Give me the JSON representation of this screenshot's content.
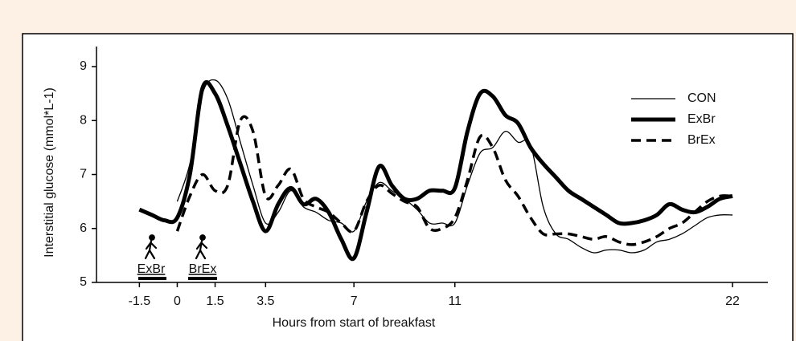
{
  "chart_data": {
    "type": "line",
    "xlabel": "Hours from start of breakfast",
    "ylabel": "Interstitial glucose (mmol*L-1)",
    "x": [
      -1.5,
      -1,
      -0.5,
      0,
      0.5,
      1,
      1.5,
      2,
      2.5,
      3,
      3.5,
      4,
      4.5,
      5,
      5.5,
      6,
      6.5,
      7,
      7.5,
      8,
      8.5,
      9,
      9.5,
      10,
      10.5,
      11,
      11.5,
      12,
      12.5,
      13,
      13.5,
      14,
      14.5,
      15,
      15.5,
      16,
      16.5,
      17,
      17.5,
      18,
      18.5,
      19,
      19.5,
      20,
      20.5,
      21,
      21.5,
      22
    ],
    "series": [
      {
        "name": "CON",
        "color": "#000000",
        "line_width": 1.3,
        "dash": "solid",
        "values": [
          null,
          null,
          null,
          6.5,
          7.2,
          8.5,
          8.75,
          8.4,
          7.6,
          6.8,
          6.1,
          6.3,
          6.7,
          6.4,
          6.3,
          6.15,
          6.1,
          5.95,
          6.5,
          6.85,
          6.7,
          6.55,
          6.35,
          6.1,
          6.1,
          6.1,
          6.8,
          7.4,
          7.5,
          7.8,
          7.6,
          7.55,
          6.4,
          5.9,
          5.8,
          5.65,
          5.55,
          5.6,
          5.6,
          5.55,
          5.6,
          5.75,
          5.8,
          5.9,
          6.05,
          6.2,
          6.25,
          6.25
        ]
      },
      {
        "name": "ExBr",
        "color": "#000000",
        "line_width": 5,
        "dash": "solid",
        "values": [
          6.35,
          6.25,
          6.15,
          6.2,
          7.0,
          8.6,
          8.5,
          7.9,
          7.2,
          6.5,
          5.95,
          6.45,
          6.75,
          6.45,
          6.55,
          6.3,
          5.8,
          5.45,
          6.3,
          7.15,
          6.8,
          6.55,
          6.55,
          6.7,
          6.7,
          6.75,
          7.8,
          8.5,
          8.45,
          8.1,
          7.95,
          7.5,
          7.2,
          6.95,
          6.7,
          6.55,
          6.4,
          6.25,
          6.1,
          6.1,
          6.15,
          6.25,
          6.45,
          6.35,
          6.3,
          6.4,
          6.55,
          6.6
        ]
      },
      {
        "name": "BrEx",
        "color": "#000000",
        "line_width": 3.5,
        "dash": "dashed",
        "values": [
          null,
          null,
          null,
          5.95,
          6.6,
          7.0,
          6.7,
          6.8,
          8.0,
          7.8,
          6.6,
          6.8,
          7.1,
          6.55,
          6.4,
          6.3,
          6.1,
          5.95,
          6.5,
          6.8,
          6.65,
          6.5,
          6.4,
          6.0,
          6.0,
          6.2,
          6.9,
          7.7,
          7.5,
          6.9,
          6.6,
          6.2,
          5.9,
          5.9,
          5.9,
          5.85,
          5.8,
          5.85,
          5.75,
          5.7,
          5.75,
          5.85,
          6.0,
          6.1,
          6.3,
          6.5,
          6.6,
          6.6
        ]
      }
    ],
    "xlim": [
      -3.2,
      23.4
    ],
    "xticks": [
      -1.5,
      0,
      1.5,
      3.5,
      7,
      11,
      22
    ],
    "ylim": [
      5,
      9
    ],
    "yticks": [
      5,
      6,
      7,
      8,
      9
    ],
    "legend": "upper right",
    "annotations": [
      "ExBr",
      "BrEx"
    ]
  }
}
